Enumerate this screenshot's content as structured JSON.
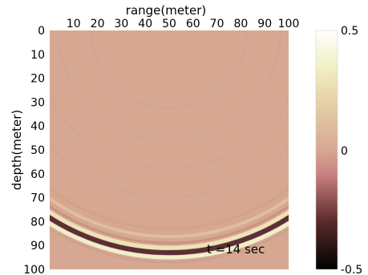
{
  "chart_data": {
    "type": "heatmap",
    "title": "",
    "xlabel": "range(meter)",
    "ylabel": "depth(meter)",
    "xlim": [
      0,
      100
    ],
    "ylim": [
      0,
      100
    ],
    "y_inverted": true,
    "x_axis_position": "top",
    "x_ticks": [
      "10",
      "20",
      "30",
      "40",
      "50",
      "60",
      "70",
      "80",
      "90",
      "100"
    ],
    "y_ticks": [
      "0",
      "10",
      "20",
      "30",
      "40",
      "50",
      "60",
      "70",
      "80",
      "90",
      "100"
    ],
    "grid": false,
    "colorbar": {
      "range": [
        -0.5,
        0.5
      ],
      "tick_labels": [
        "0.5",
        "0",
        "-0.5"
      ],
      "colors": [
        "#000000",
        "#c87a7a",
        "#d8ae96",
        "#eeeeb8",
        "#ffffff"
      ]
    },
    "background_color": "#d6a892",
    "wavefront": {
      "center": [
        50,
        0
      ],
      "radius": 93,
      "description_units": "meters"
    },
    "annotation": "t =14 sec"
  }
}
